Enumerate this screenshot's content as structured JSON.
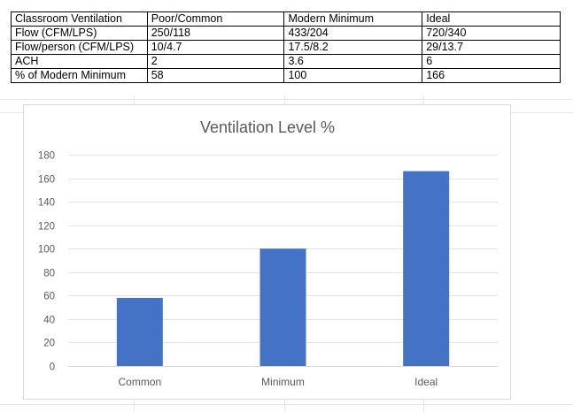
{
  "table": {
    "header": [
      "Classroom Ventilation",
      "Poor/Common",
      "Modern Minimum",
      "Ideal"
    ],
    "rows": [
      [
        "Flow (CFM/LPS)",
        "250/118",
        "433/204",
        "720/340"
      ],
      [
        "Flow/person (CFM/LPS)",
        "10/4.7",
        "17.5/8.2",
        "29/13.7"
      ],
      [
        "ACH",
        "2",
        "3.6",
        "6"
      ],
      [
        "% of Modern Minimum",
        "58",
        "100",
        "166"
      ]
    ]
  },
  "chart_data": {
    "type": "bar",
    "title": "Ventilation Level %",
    "categories": [
      "Common",
      "Minimum",
      "Ideal"
    ],
    "values": [
      58,
      100,
      166
    ],
    "xlabel": "",
    "ylabel": "",
    "ylim": [
      0,
      180
    ],
    "yticks": [
      0,
      20,
      40,
      60,
      80,
      100,
      120,
      140,
      160,
      180
    ],
    "grid": true,
    "legend": "none",
    "bar_color": "#4472c4"
  }
}
